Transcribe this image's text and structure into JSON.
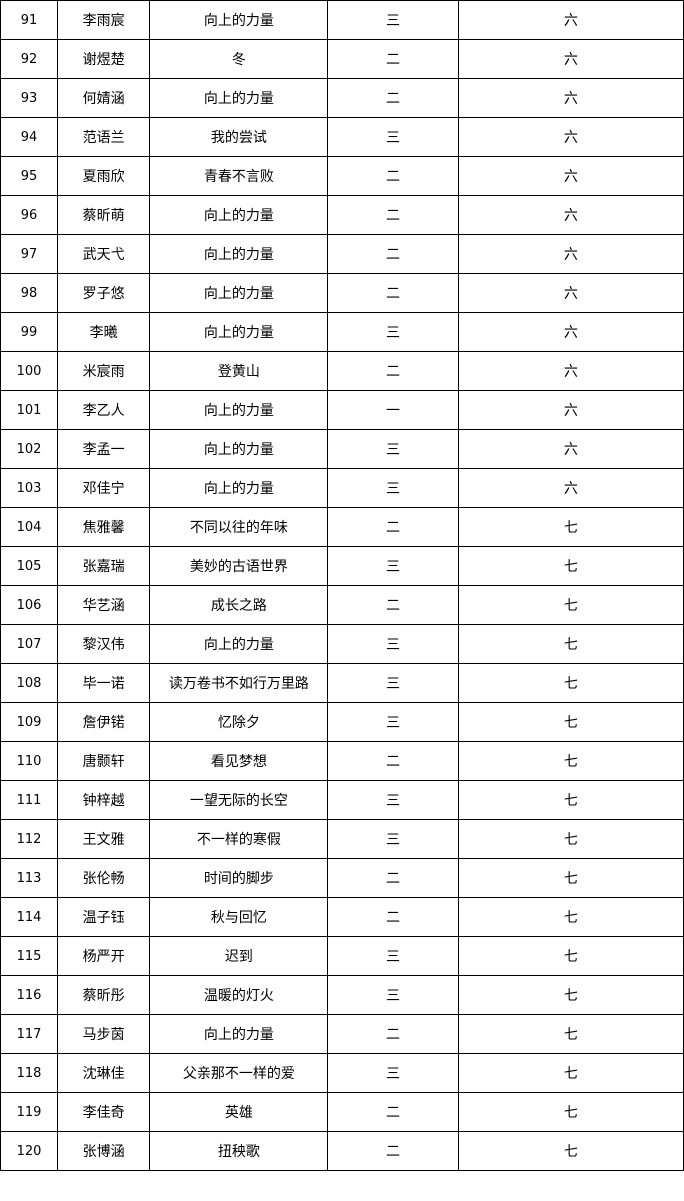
{
  "rows": [
    [
      "91",
      "李雨宸",
      "向上的力量",
      "三",
      "六"
    ],
    [
      "92",
      "谢煜楚",
      "冬",
      "二",
      "六"
    ],
    [
      "93",
      "何婧涵",
      "向上的力量",
      "二",
      "六"
    ],
    [
      "94",
      "范语兰",
      "我的尝试",
      "三",
      "六"
    ],
    [
      "95",
      "夏雨欣",
      "青春不言败",
      "二",
      "六"
    ],
    [
      "96",
      "蔡昕萌",
      "向上的力量",
      "二",
      "六"
    ],
    [
      "97",
      "武天弋",
      "向上的力量",
      "二",
      "六"
    ],
    [
      "98",
      "罗子悠",
      "向上的力量",
      "二",
      "六"
    ],
    [
      "99",
      "李曦",
      "向上的力量",
      "三",
      "六"
    ],
    [
      "100",
      "米宸雨",
      "登黄山",
      "二",
      "六"
    ],
    [
      "101",
      "李乙人",
      "向上的力量",
      "一",
      "六"
    ],
    [
      "102",
      "李孟一",
      "向上的力量",
      "三",
      "六"
    ],
    [
      "103",
      "邓佳宁",
      "向上的力量",
      "三",
      "六"
    ],
    [
      "104",
      "焦雅馨",
      "不同以往的年味",
      "二",
      "七"
    ],
    [
      "105",
      "张嘉瑞",
      "美妙的古语世界",
      "三",
      "七"
    ],
    [
      "106",
      "华艺涵",
      "成长之路",
      "二",
      "七"
    ],
    [
      "107",
      "黎汉伟",
      "向上的力量",
      "三",
      "七"
    ],
    [
      "108",
      "毕一诺",
      "读万卷书不如行万里路",
      "三",
      "七"
    ],
    [
      "109",
      "詹伊锘",
      "忆除夕",
      "三",
      "七"
    ],
    [
      "110",
      "唐颢轩",
      "看见梦想",
      "二",
      "七"
    ],
    [
      "111",
      "钟梓越",
      "一望无际的长空",
      "三",
      "七"
    ],
    [
      "112",
      "王文雅",
      "不一样的寒假",
      "三",
      "七"
    ],
    [
      "113",
      "张伦畅",
      "时间的脚步",
      "二",
      "七"
    ],
    [
      "114",
      "温子钰",
      "秋与回忆",
      "二",
      "七"
    ],
    [
      "115",
      "杨严开",
      "迟到",
      "三",
      "七"
    ],
    [
      "116",
      "蔡昕彤",
      "温暖的灯火",
      "三",
      "七"
    ],
    [
      "117",
      "马步茵",
      "向上的力量",
      "二",
      "七"
    ],
    [
      "118",
      "沈琳佳",
      "父亲那不一样的爱",
      "三",
      "七"
    ],
    [
      "119",
      "李佳奇",
      "英雄",
      "二",
      "七"
    ],
    [
      "120",
      "张博涵",
      "扭秧歌",
      "二",
      "七"
    ]
  ]
}
